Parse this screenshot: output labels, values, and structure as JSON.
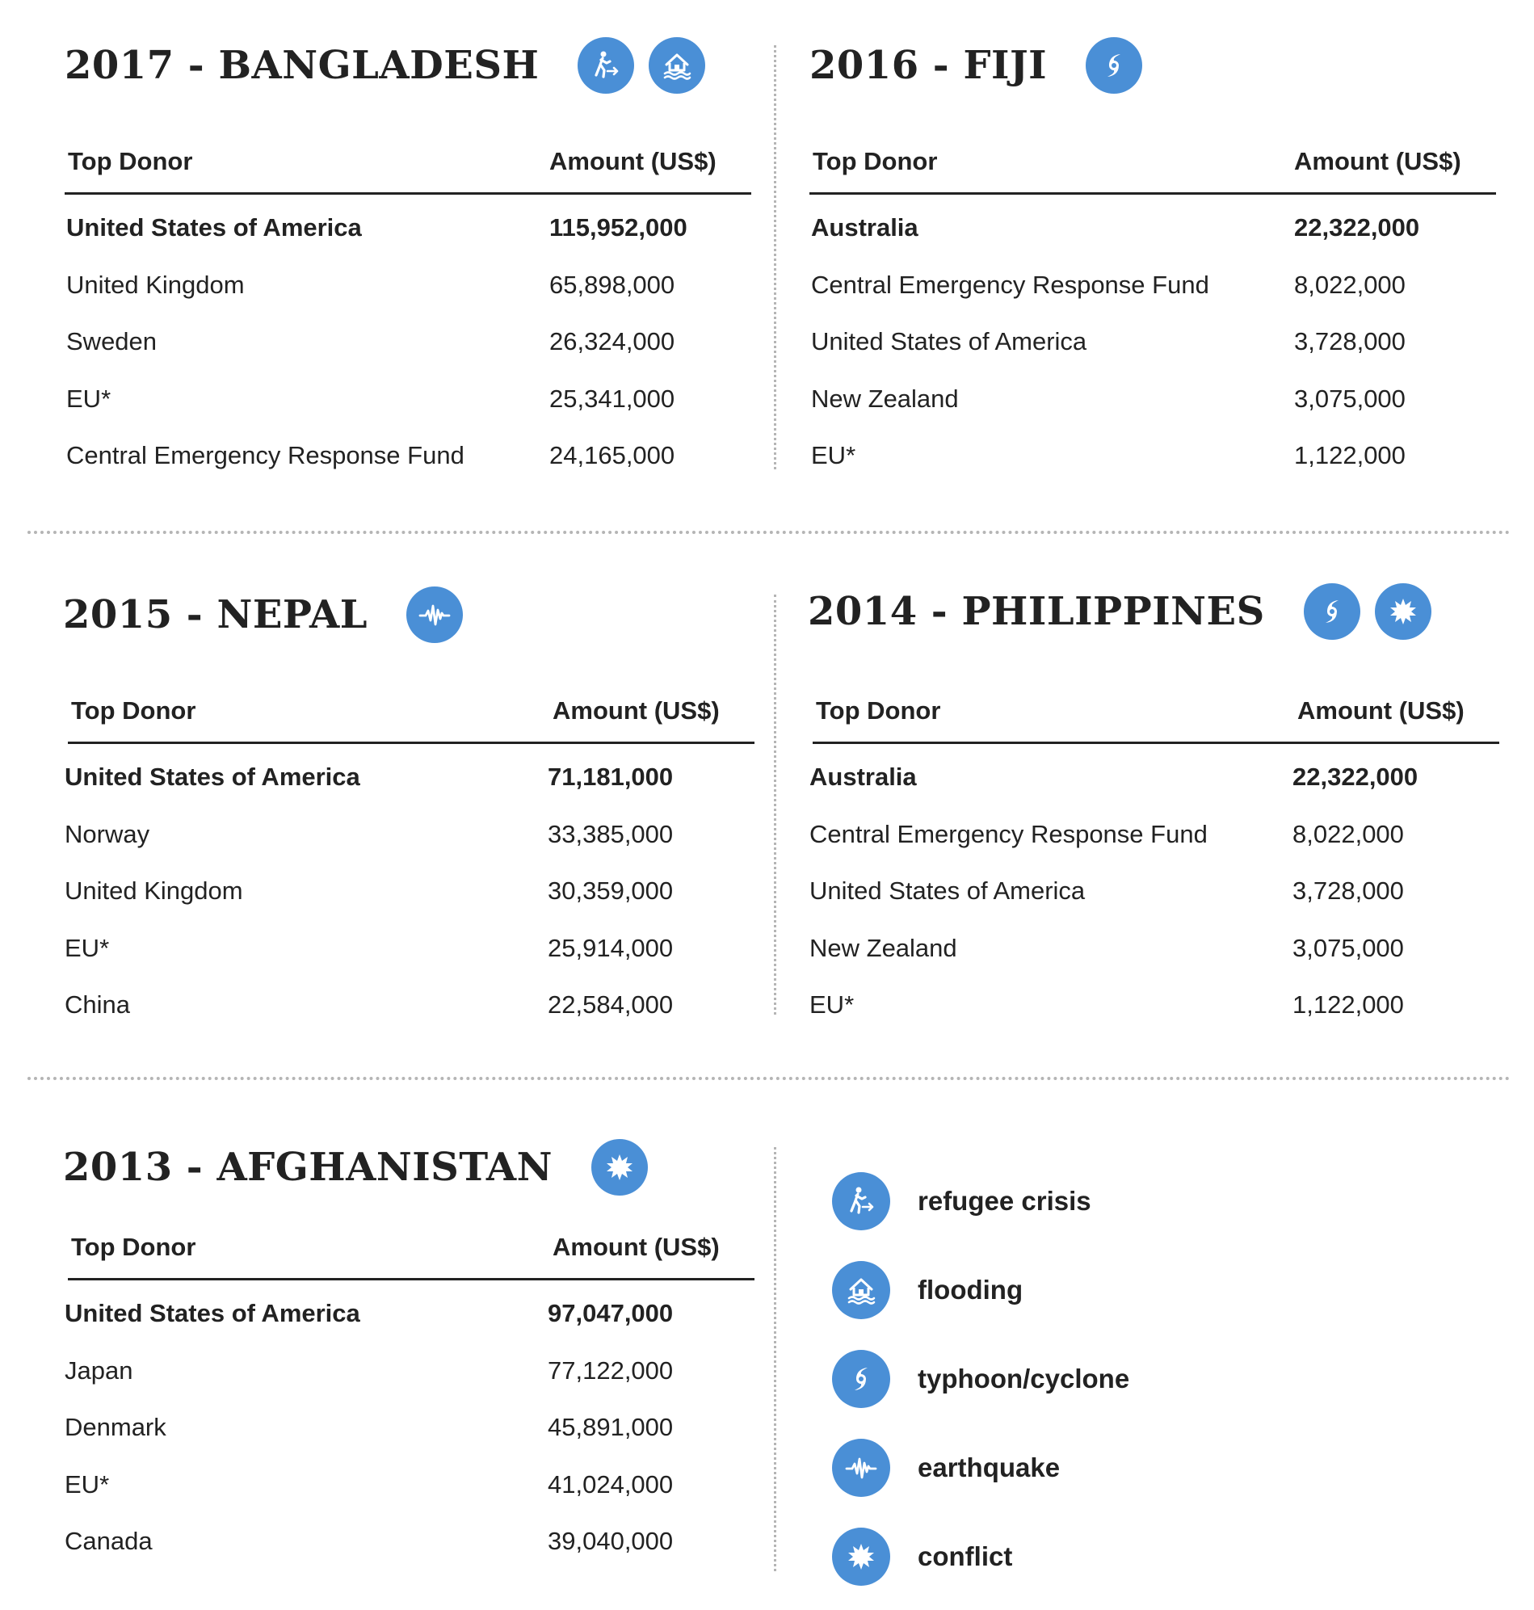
{
  "colors": {
    "icon_blue": "#4a8fd6",
    "text": "#222222",
    "divider": "#b5b5b5"
  },
  "table_header": {
    "donor": "Top Donor",
    "amount": "Amount (US$)"
  },
  "panels": [
    {
      "title": "2017 - BANGLADESH",
      "icons": [
        "refugee-crisis-icon",
        "flooding-icon"
      ],
      "rows": [
        {
          "donor": "United States of America",
          "amount": "115,952,000"
        },
        {
          "donor": "United Kingdom",
          "amount": "65,898,000"
        },
        {
          "donor": "Sweden",
          "amount": "26,324,000"
        },
        {
          "donor": "EU*",
          "amount": "25,341,000"
        },
        {
          "donor": "Central Emergency Response Fund",
          "amount": "24,165,000"
        }
      ]
    },
    {
      "title": "2016 - FIJI",
      "icons": [
        "typhoon-cyclone-icon"
      ],
      "rows": [
        {
          "donor": "Australia",
          "amount": "22,322,000"
        },
        {
          "donor": "Central Emergency Response Fund",
          "amount": "8,022,000"
        },
        {
          "donor": "United States of America",
          "amount": "3,728,000"
        },
        {
          "donor": "New Zealand",
          "amount": "3,075,000"
        },
        {
          "donor": "EU*",
          "amount": "1,122,000"
        }
      ]
    },
    {
      "title": "2015 - NEPAL",
      "icons": [
        "earthquake-icon"
      ],
      "rows": [
        {
          "donor": "United States of America",
          "amount": "71,181,000"
        },
        {
          "donor": "Norway",
          "amount": "33,385,000"
        },
        {
          "donor": "United Kingdom",
          "amount": "30,359,000"
        },
        {
          "donor": "EU*",
          "amount": "25,914,000"
        },
        {
          "donor": "China",
          "amount": "22,584,000"
        }
      ]
    },
    {
      "title": "2014 - PHILIPPINES",
      "icons": [
        "typhoon-cyclone-icon",
        "conflict-icon"
      ],
      "rows": [
        {
          "donor": "Australia",
          "amount": "22,322,000"
        },
        {
          "donor": "Central Emergency Response Fund",
          "amount": "8,022,000"
        },
        {
          "donor": "United States of America",
          "amount": "3,728,000"
        },
        {
          "donor": "New Zealand",
          "amount": "3,075,000"
        },
        {
          "donor": "EU*",
          "amount": "1,122,000"
        }
      ]
    },
    {
      "title": "2013 - AFGHANISTAN",
      "icons": [
        "conflict-icon"
      ],
      "rows": [
        {
          "donor": "United States of America",
          "amount": "97,047,000"
        },
        {
          "donor": "Japan",
          "amount": "77,122,000"
        },
        {
          "donor": "Denmark",
          "amount": "45,891,000"
        },
        {
          "donor": "EU*",
          "amount": "41,024,000"
        },
        {
          "donor": "Canada",
          "amount": "39,040,000"
        }
      ]
    }
  ],
  "legend": [
    {
      "icon": "refugee-crisis-icon",
      "label": "refugee crisis"
    },
    {
      "icon": "flooding-icon",
      "label": "flooding"
    },
    {
      "icon": "typhoon-cyclone-icon",
      "label": "typhoon/cyclone"
    },
    {
      "icon": "earthquake-icon",
      "label": "earthquake"
    },
    {
      "icon": "conflict-icon",
      "label": "conflict"
    }
  ]
}
